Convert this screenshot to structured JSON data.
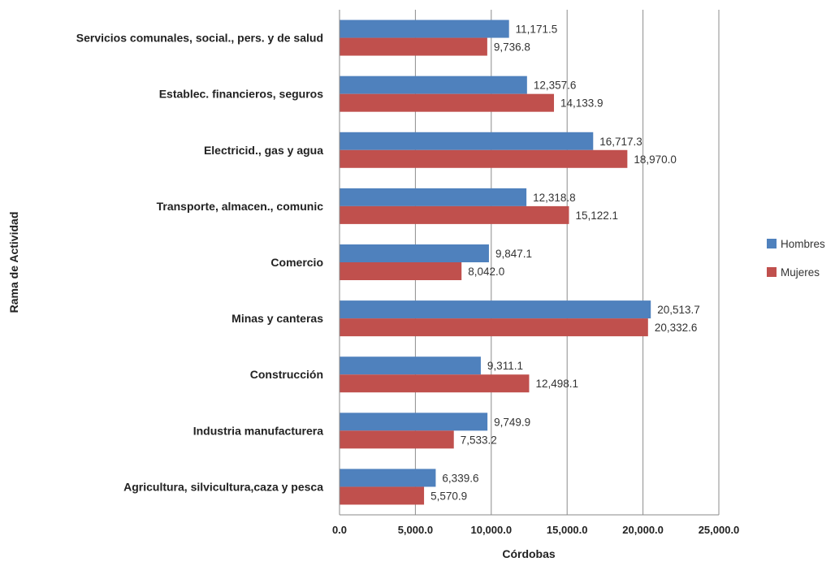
{
  "chart_data": {
    "type": "bar",
    "orientation": "horizontal",
    "title": "",
    "xlabel": "Córdobas",
    "ylabel": "Rama de Actividad",
    "xlim": [
      0,
      25000
    ],
    "x_ticks": [
      "0.0",
      "5,000.0",
      "10,000.0",
      "15,000.0",
      "20,000.0",
      "25,000.0"
    ],
    "grid": "vertical",
    "legend_position": "right",
    "categories": [
      "Servicios comunales, social., pers. y de salud",
      "Establec. financieros, seguros",
      "Electricid., gas y agua",
      "Transporte, almacen., comunic",
      "Comercio",
      "Minas y canteras",
      "Construcción",
      "Industria manufacturera",
      "Agricultura, silvicultura,caza y pesca"
    ],
    "series": [
      {
        "name": "Hombres",
        "color": "#4F81BD",
        "values": [
          11171.5,
          12357.6,
          16717.3,
          12318.8,
          9847.1,
          20513.7,
          9311.1,
          9749.9,
          6339.6
        ],
        "labels": [
          "11,171.5",
          "12,357.6",
          "16,717.3",
          "12,318.8",
          "9,847.1",
          "20,513.7",
          "9,311.1",
          "9,749.9",
          "6,339.6"
        ]
      },
      {
        "name": "Mujeres",
        "color": "#C0504D",
        "values": [
          9736.8,
          14133.9,
          18970.0,
          15122.1,
          8042.0,
          20332.6,
          12498.1,
          7533.2,
          5570.9
        ],
        "labels": [
          "9,736.8",
          "14,133.9",
          "18,970.0",
          "15,122.1",
          "8,042.0",
          "20,332.6",
          "12,498.1",
          "7,533.2",
          "5,570.9"
        ]
      }
    ]
  }
}
